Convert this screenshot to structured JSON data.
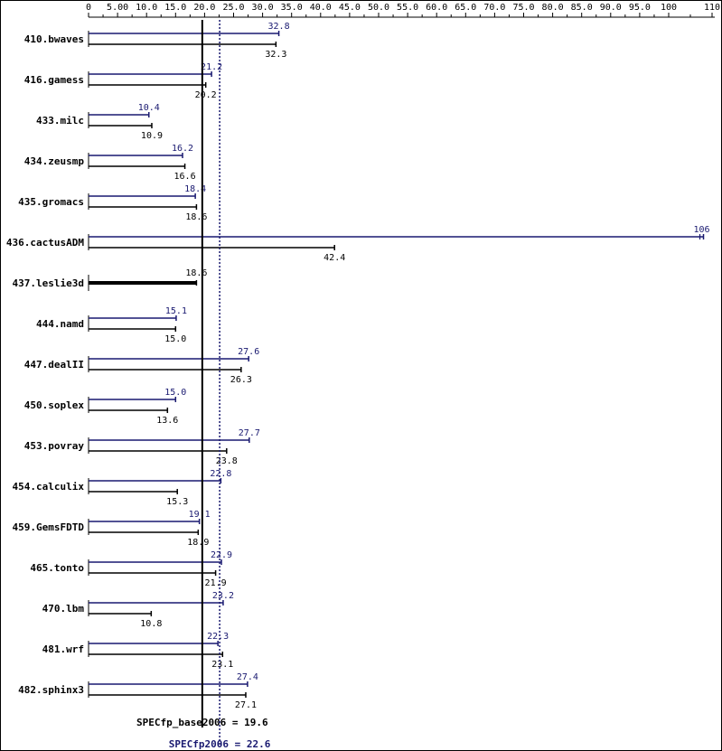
{
  "chart_data": {
    "type": "bar",
    "orientation": "horizontal",
    "x_ticks": [
      "0",
      "5.00",
      "10.0",
      "15.0",
      "20.0",
      "25.0",
      "30.0",
      "35.0",
      "40.0",
      "45.0",
      "50.0",
      "55.0",
      "60.0",
      "65.0",
      "70.0",
      "75.0",
      "80.0",
      "85.0",
      "90.0",
      "95.0",
      "100",
      "110"
    ],
    "x_tick_values": [
      0,
      5,
      10,
      15,
      20,
      25,
      30,
      35,
      40,
      45,
      50,
      55,
      60,
      65,
      70,
      75,
      80,
      85,
      90,
      95,
      100,
      110
    ],
    "xlim": [
      0,
      110
    ],
    "grid": false,
    "series_colors": {
      "peak": "#191970",
      "base": "#000000"
    },
    "categories": [
      "410.bwaves",
      "416.gamess",
      "433.milc",
      "434.zeusmp",
      "435.gromacs",
      "436.cactusADM",
      "437.leslie3d",
      "444.namd",
      "447.dealII",
      "450.soplex",
      "453.povray",
      "454.calculix",
      "459.GemsFDTD",
      "465.tonto",
      "470.lbm",
      "481.wrf",
      "482.sphinx3"
    ],
    "peak": [
      "32.8",
      "21.2",
      "10.4",
      "16.2",
      "18.4",
      "106",
      "",
      "15.1",
      "27.6",
      "15.0",
      "27.7",
      "22.8",
      "19.1",
      "22.9",
      "23.2",
      "22.3",
      "27.4"
    ],
    "base": [
      "32.3",
      "20.2",
      "10.9",
      "16.6",
      "18.6",
      "42.4",
      "18.6",
      "15.0",
      "26.3",
      "13.6",
      "23.8",
      "15.3",
      "18.9",
      "21.9",
      "10.8",
      "23.1",
      "27.1"
    ],
    "reference_lines": {
      "base": {
        "label": "SPECfp_base2006 = 19.6",
        "value": 19.6,
        "style": "solid"
      },
      "peak": {
        "label": "SPECfp2006 = 22.6",
        "value": 22.6,
        "style": "dotted"
      }
    }
  }
}
